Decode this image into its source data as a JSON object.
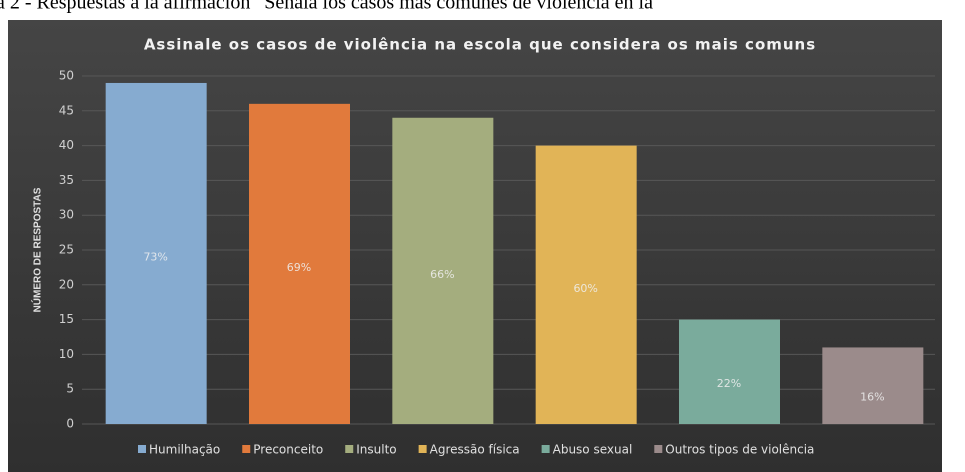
{
  "caption": "a 2 - Respuestas a la afirmación “Señala los casos más comunes de violencia en la",
  "chart_data": {
    "type": "bar",
    "title": "Assinale os casos de violência na escola que considera os mais comuns",
    "ylabel": "NÚMERO DE RESPOSTAS",
    "categories": [
      "Humilhação",
      "Preconceito",
      "Insulto",
      "Agressão física",
      "Abuso sexual",
      "Outros tipos de violência"
    ],
    "values": [
      49,
      46,
      44,
      40,
      15,
      11
    ],
    "percent_labels": [
      "73%",
      "69%",
      "66%",
      "60%",
      "22%",
      "16%"
    ],
    "colors": [
      "#86abd0",
      "#e17a3c",
      "#a4ad7e",
      "#e1b457",
      "#7aab9c",
      "#9b8b8b"
    ],
    "ylim": [
      0,
      50
    ],
    "yticks": [
      0,
      5,
      10,
      15,
      20,
      25,
      30,
      35,
      40,
      45,
      50
    ],
    "grid": true,
    "legend": "bottom"
  }
}
